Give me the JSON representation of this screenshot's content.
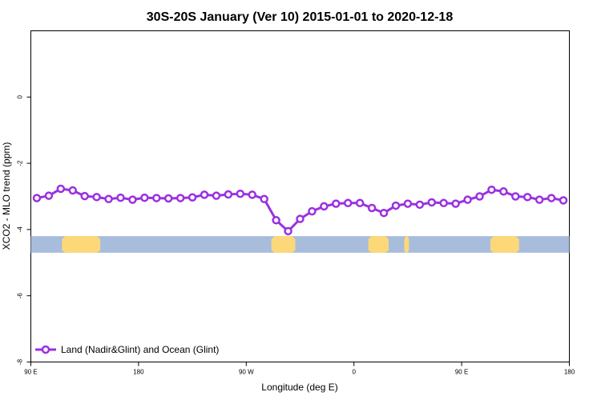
{
  "chart_data": {
    "type": "line",
    "title": "30S-20S January (Ver 10)   2015-01-01 to 2020-12-18",
    "xlabel": "Longitude (deg E)",
    "ylabel": "XCO2 - MLO trend (ppm)",
    "xlim": [
      90,
      540
    ],
    "ylim": [
      -8,
      2
    ],
    "x_ticks": [
      {
        "value": 90,
        "label": "90 E"
      },
      {
        "value": 180,
        "label": "180"
      },
      {
        "value": 270,
        "label": "90 W"
      },
      {
        "value": 360,
        "label": "0"
      },
      {
        "value": 450,
        "label": "90 E"
      },
      {
        "value": 540,
        "label": "180"
      }
    ],
    "y_ticks": [
      {
        "value": 0,
        "label": "0"
      },
      {
        "value": -2,
        "label": "-2"
      },
      {
        "value": -4,
        "label": "-4"
      },
      {
        "value": -6,
        "label": "-6"
      },
      {
        "value": -8,
        "label": "-8"
      }
    ],
    "series": [
      {
        "name": "Land (Nadir&Glint) and Ocean (Glint)",
        "color": "#9b30e0",
        "x": [
          95,
          105,
          115,
          125,
          135,
          145,
          155,
          165,
          175,
          185,
          195,
          205,
          215,
          225,
          235,
          245,
          255,
          265,
          275,
          285,
          295,
          305,
          315,
          325,
          335,
          345,
          355,
          365,
          375,
          385,
          395,
          405,
          415,
          425,
          435,
          445,
          455,
          465,
          475,
          485,
          495,
          505,
          515,
          525,
          535
        ],
        "y": [
          -3.05,
          -2.98,
          -2.77,
          -2.82,
          -2.99,
          -3.02,
          -3.08,
          -3.04,
          -3.1,
          -3.04,
          -3.05,
          -3.06,
          -3.05,
          -3.03,
          -2.95,
          -2.98,
          -2.94,
          -2.92,
          -2.95,
          -3.08,
          -3.72,
          -4.05,
          -3.68,
          -3.45,
          -3.3,
          -3.22,
          -3.2,
          -3.2,
          -3.35,
          -3.5,
          -3.28,
          -3.22,
          -3.25,
          -3.18,
          -3.2,
          -3.22,
          -3.1,
          -3.0,
          -2.8,
          -2.85,
          -3.0,
          -3.02,
          -3.1,
          -3.05,
          -3.12
        ]
      }
    ],
    "band": {
      "y_range": [
        -4.2,
        -4.7
      ],
      "ocean_color": "#a8bcdc",
      "land_color": "#fcd878",
      "land_segments": [
        [
          116,
          148
        ],
        [
          291,
          311
        ],
        [
          372,
          389
        ],
        [
          402,
          406
        ],
        [
          474,
          498
        ]
      ]
    },
    "legend_position": "bottom-left",
    "grid": false
  }
}
